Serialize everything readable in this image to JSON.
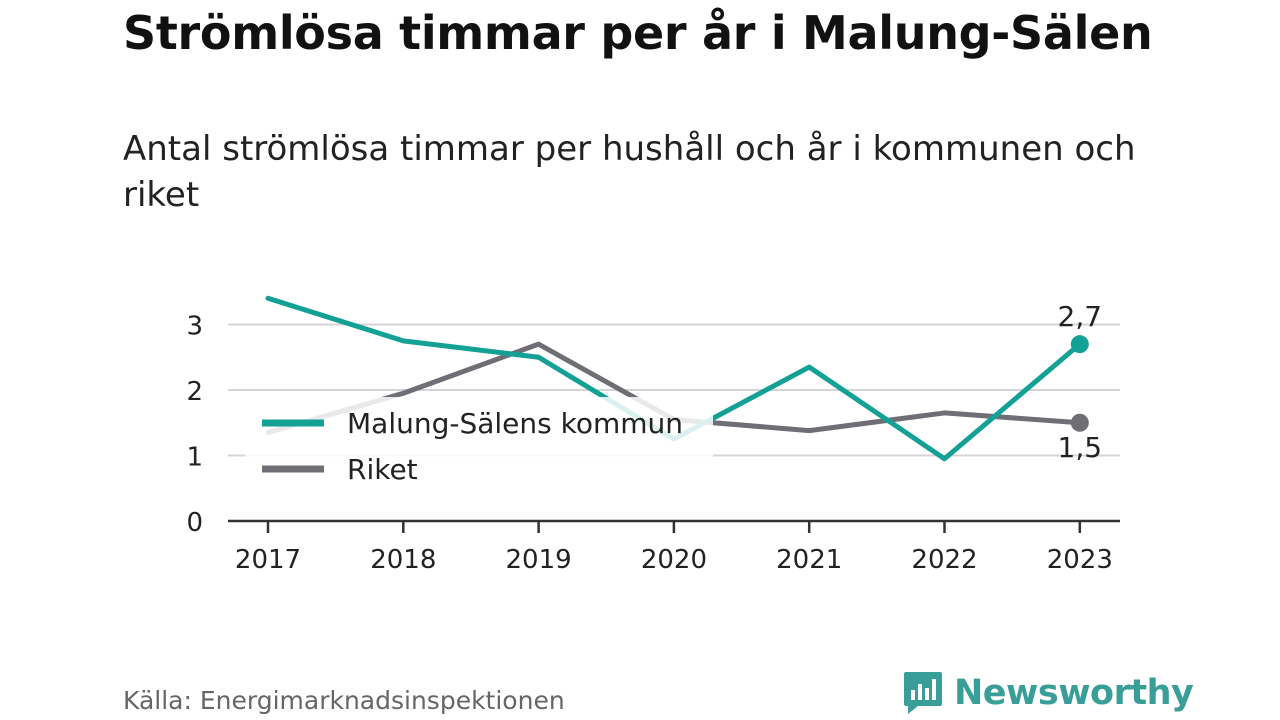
{
  "header": {
    "title": "Strömlösa timmar per år i Malung-Sälen",
    "subtitle": "Antal strömlösa timmar per hushåll och år i kommunen och riket"
  },
  "footer": {
    "source": "Källa: Energimarknadsinspektionen",
    "brand": "Newsworthy",
    "brand_icon": "chart-bars-icon"
  },
  "colors": {
    "kommun": "#13a095",
    "riket": "#706e75",
    "grid": "#d4d4d4",
    "axis": "#333333",
    "brand": "#3a9e98"
  },
  "chart_data": {
    "type": "line",
    "categories": [
      "2017",
      "2018",
      "2019",
      "2020",
      "2021",
      "2022",
      "2023"
    ],
    "series": [
      {
        "name": "Malung-Sälens kommun",
        "values": [
          3.4,
          2.75,
          2.5,
          1.25,
          2.35,
          0.95,
          2.7
        ],
        "end_label": "2,7"
      },
      {
        "name": "Riket",
        "values": [
          1.35,
          1.95,
          2.7,
          1.55,
          1.38,
          1.65,
          1.5
        ],
        "end_label": "1,5"
      }
    ],
    "yticks": [
      "0",
      "1",
      "2",
      "3"
    ],
    "ylim": [
      0,
      3.5
    ],
    "grid": true,
    "legend_position": "center-left"
  }
}
